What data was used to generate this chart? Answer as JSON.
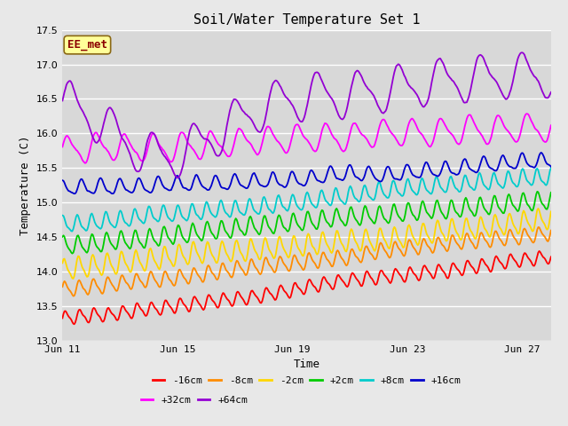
{
  "title": "Soil/Water Temperature Set 1",
  "xlabel": "Time",
  "ylabel": "Temperature (C)",
  "ylim": [
    13.0,
    17.5
  ],
  "x_tick_positions": [
    0,
    4,
    8,
    12,
    16
  ],
  "x_tick_labels": [
    "Jun 11",
    "Jun 15",
    "Jun 19",
    "Jun 23",
    "Jun 27"
  ],
  "annotation": "EE_met",
  "annotation_color": "#8B0000",
  "annotation_bg": "#FFFF99",
  "series": [
    {
      "label": "-16cm",
      "color": "#FF0000",
      "base": 13.32,
      "trend": 0.052,
      "amp": 0.09,
      "freq": 2.0,
      "noise": 0.025,
      "phase": 0.0
    },
    {
      "label": "-8cm",
      "color": "#FF8C00",
      "base": 13.75,
      "trend": 0.047,
      "amp": 0.1,
      "freq": 2.0,
      "noise": 0.025,
      "phase": 0.3
    },
    {
      "label": "-2cm",
      "color": "#FFD700",
      "base": 14.02,
      "trend": 0.043,
      "amp": 0.14,
      "freq": 2.0,
      "noise": 0.03,
      "phase": 0.6
    },
    {
      "label": "+2cm",
      "color": "#00CC00",
      "base": 14.35,
      "trend": 0.042,
      "amp": 0.12,
      "freq": 2.0,
      "noise": 0.03,
      "phase": 0.9
    },
    {
      "label": "+8cm",
      "color": "#00CCCC",
      "base": 14.72,
      "trend": 0.036,
      "amp": 0.11,
      "freq": 2.0,
      "noise": 0.03,
      "phase": 1.2
    },
    {
      "label": "+16cm",
      "color": "#0000CC",
      "base": 15.18,
      "trend": 0.022,
      "amp": 0.1,
      "freq": 1.5,
      "noise": 0.035,
      "phase": 1.5
    },
    {
      "label": "+32cm",
      "color": "#FF00FF",
      "base": 15.82,
      "trend": 0.012,
      "amp": 0.18,
      "freq": 1.0,
      "noise": 0.04,
      "phase": 0.2
    },
    {
      "label": "+64cm",
      "color": "#9400D3",
      "base": 16.5,
      "trend": 0.005,
      "amp": 0.3,
      "freq": 0.7,
      "noise": 0.05,
      "phase": 0.0
    }
  ],
  "background_color": "#E8E8E8",
  "plot_bg_color": "#D8D8D8",
  "grid_color": "#FFFFFF",
  "linewidth": 1.3,
  "n_days": 17,
  "n_points": 500
}
